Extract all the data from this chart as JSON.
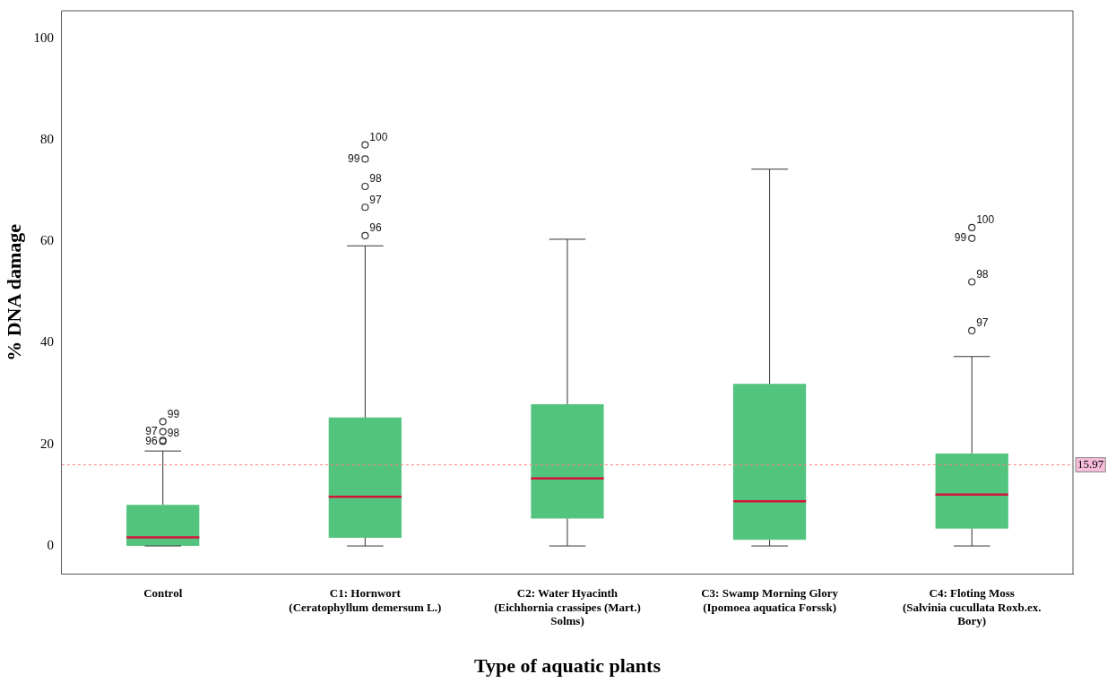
{
  "chart_data": {
    "type": "box",
    "xlabel": "Type of aquatic plants",
    "ylabel": "% DNA damage",
    "categories": [
      "Control",
      "C1: Hornwort\n(Ceratophyllum demersum L.)",
      "C2: Water Hyacinth\n(Eichhornia crassipes (Mart.)\nSolms)",
      "C3: Swamp Morning Glory\n(Ipomoea aquatica Forssk)",
      "C4: Floting Moss\n(Salvinia cucullata Roxb.ex.\nBory)"
    ],
    "color": "#52c47e",
    "boxes": [
      {
        "low": 0,
        "q1": 0,
        "median": 1.7,
        "q3": 8.1,
        "high": 18.7,
        "outliers": [
          24.5,
          22.5,
          20.8,
          20.6
        ]
      },
      {
        "low": 0,
        "q1": 1.6,
        "median": 9.7,
        "q3": 25.3,
        "high": 59.1,
        "outliers": [
          79.0,
          76.2,
          70.8,
          66.7,
          61.1
        ]
      },
      {
        "low": 0,
        "q1": 5.4,
        "median": 13.3,
        "q3": 27.9,
        "high": 60.4
      },
      {
        "low": 0,
        "q1": 1.2,
        "median": 8.8,
        "q3": 31.9,
        "high": 74.2
      },
      {
        "low": 0,
        "q1": 3.4,
        "median": 10.1,
        "q3": 18.2,
        "high": 37.3,
        "outliers": [
          62.7,
          60.6,
          52.0,
          42.4
        ]
      }
    ],
    "ylim": [
      -5.6,
      105.4
    ],
    "yticks": [
      0,
      20,
      40,
      60,
      80,
      100
    ],
    "ref_lines": [
      {
        "axis": "y",
        "value": 15.97,
        "label": "15.97",
        "color": "#ff8080",
        "line_style": "dotted"
      }
    ],
    "annotations": [
      "99",
      "97",
      "98",
      "96",
      "100",
      "99",
      "98",
      "97",
      "96",
      "100",
      "99",
      "98",
      "97"
    ],
    "grid": false,
    "legend": false
  }
}
